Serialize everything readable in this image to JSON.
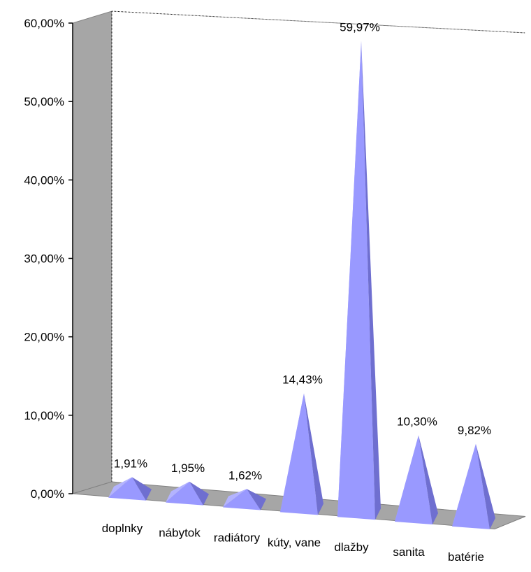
{
  "chart_data": {
    "type": "bar",
    "bar_shape": "3d-pyramid",
    "categories": [
      "doplnky",
      "nábytok",
      "radiátory",
      "kúty, vane",
      "dlažby",
      "sanita",
      "batérie"
    ],
    "values": [
      1.91,
      1.95,
      1.62,
      14.43,
      59.97,
      10.3,
      9.82
    ],
    "data_labels": [
      "1,91%",
      "1,95%",
      "1,62%",
      "14,43%",
      "59,97%",
      "10,30%",
      "9,82%"
    ],
    "y_ticks": [
      0,
      10,
      20,
      30,
      40,
      50,
      60
    ],
    "y_tick_labels": [
      "0,00%",
      "10,00%",
      "20,00%",
      "30,00%",
      "40,00%",
      "50,00%",
      "60,00%"
    ],
    "ylim": [
      0,
      60
    ],
    "grid": false,
    "legend": "none",
    "colors": {
      "pyramid_front": "#9999ff",
      "pyramid_left": "#b3b3ff",
      "pyramid_right": "#6f6fd0",
      "back_wall": "#ffffff",
      "side_wall": "#a6a6a6",
      "floor": "#a6a6a6",
      "wall_edge": "#808080"
    }
  }
}
